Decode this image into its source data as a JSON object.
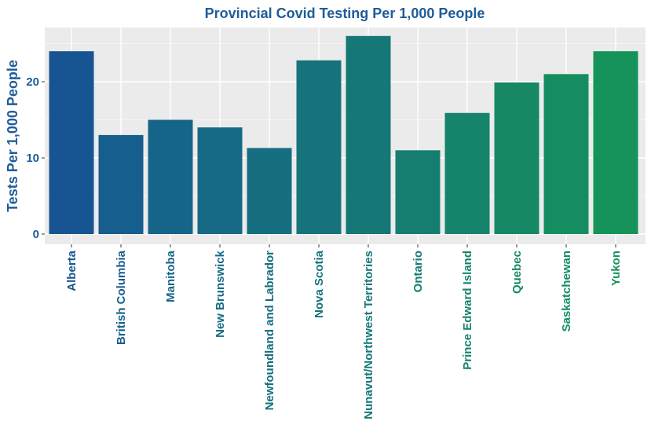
{
  "chart_data": {
    "type": "bar",
    "title": "Provincial Covid Testing Per 1,000 People",
    "xlabel": "",
    "ylabel": "Tests Per 1,000 People",
    "categories": [
      "Alberta",
      "British Columbia",
      "Manitoba",
      "New Brunswick",
      "Newfoundland and Labrador",
      "Nova Scotia",
      "Nunavut/Northwest Territories",
      "Ontario",
      "Prince Edward Island",
      "Quebec",
      "Saskatchewan",
      "Yukon"
    ],
    "values": [
      24,
      13,
      15,
      14,
      11.3,
      22.8,
      26,
      11,
      15.9,
      19.9,
      21,
      24
    ],
    "ylim": [
      0,
      27.2
    ],
    "yticks": [
      0,
      10,
      20
    ],
    "grid": true,
    "legend": "none",
    "colors": {
      "title": "#1f5c99",
      "ylabel": "#1f5c99",
      "ytick": "#1f5c99",
      "panel": "#ebebeb",
      "grid_major": "#ffffff",
      "grid_minor": "#f5f5f5",
      "bars": [
        "#165592",
        "#165e8d",
        "#166589",
        "#166a85",
        "#166e80",
        "#16737c",
        "#167777",
        "#167d71",
        "#16836b",
        "#168866",
        "#168d60",
        "#16935a"
      ]
    }
  }
}
